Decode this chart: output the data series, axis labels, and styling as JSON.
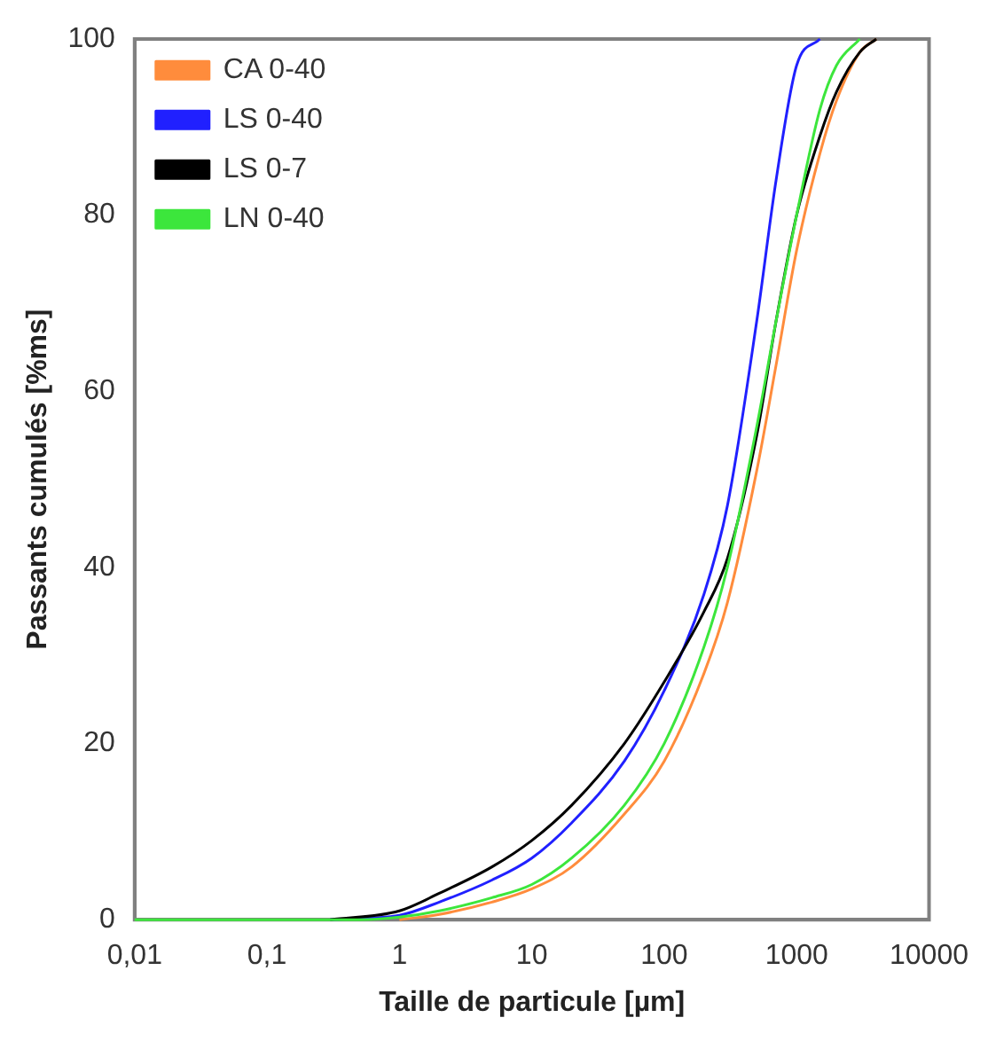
{
  "chart_data": {
    "type": "line",
    "xlabel": "Taille de particule [µm]",
    "ylabel": "Passants cumulés [%ms]",
    "log": "x",
    "xlim": [
      0.01,
      10000
    ],
    "xticks": [
      {
        "value": 0.01,
        "label": "0,01"
      },
      {
        "value": 0.1,
        "label": "0,1"
      },
      1,
      10,
      100,
      1000,
      10000
    ],
    "ylim": [
      0,
      100
    ],
    "yticks": [
      0,
      20,
      40,
      60,
      80,
      100
    ],
    "grid": false,
    "legend": "top left",
    "marker": "none",
    "line_style": "solid",
    "series": [
      {
        "name": "CA 0-40",
        "color": "#ff8c3c",
        "x": [
          1,
          2,
          5,
          10,
          20,
          50,
          100,
          200,
          300,
          500,
          700,
          1000,
          1500,
          2000,
          3000,
          4000
        ],
        "values": [
          0,
          0.6,
          2,
          3.5,
          6,
          12,
          18,
          28,
          36,
          51,
          63,
          76,
          87,
          93,
          98.5,
          100
        ]
      },
      {
        "name": "LS 0-40",
        "color": "#2020ff",
        "x": [
          0.3,
          1,
          2,
          5,
          10,
          20,
          50,
          100,
          200,
          300,
          500,
          700,
          1000,
          1500
        ],
        "values": [
          0,
          0.5,
          2,
          4.5,
          7,
          11,
          18,
          26,
          37,
          47,
          68,
          84,
          97,
          100
        ]
      },
      {
        "name": "LS 0-7",
        "color": "#000000",
        "x": [
          0.3,
          1,
          2,
          5,
          10,
          20,
          50,
          100,
          200,
          300,
          500,
          700,
          1000,
          1500,
          2000,
          3000,
          4000
        ],
        "values": [
          0,
          1,
          3,
          6,
          9,
          13,
          20,
          27,
          35,
          41,
          55,
          68,
          80,
          89,
          94,
          98.5,
          100
        ]
      },
      {
        "name": "LN 0-40",
        "color": "#3ce63c",
        "x": [
          0.01,
          0.1,
          0.5,
          1,
          2,
          5,
          10,
          20,
          50,
          100,
          200,
          300,
          500,
          700,
          1000,
          1500,
          2000,
          3000
        ],
        "values": [
          0,
          0,
          0,
          0.3,
          1,
          2.5,
          4,
          7,
          13,
          20,
          31,
          40,
          56,
          68,
          80,
          92,
          97,
          100
        ]
      }
    ]
  }
}
